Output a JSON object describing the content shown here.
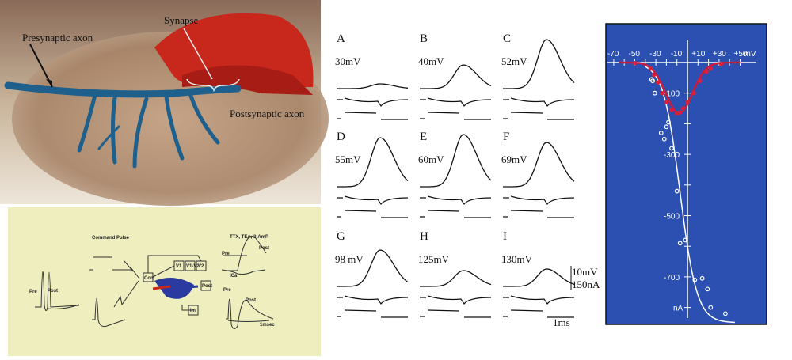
{
  "photo": {
    "labels": {
      "presynaptic": "Presynaptic axon",
      "synapse": "Synapse",
      "postsynaptic": "Postsynaptic axon"
    },
    "colors": {
      "tissue": "#b08a6a",
      "synapse": "#c8281c",
      "axon": "#1e5f8c"
    }
  },
  "schematic": {
    "background": "#eeeebe",
    "command_pulse": "Command Pulse",
    "pre": "Pre",
    "post": "Post",
    "com": "Com",
    "v1": "V1",
    "v1v2": "V1-V2",
    "v2": "V2",
    "post_box": "Post",
    "im": "Im",
    "drugs": "TTX, TEA, 3-AmP",
    "ica": "ICa",
    "scale": "1msec"
  },
  "traces": {
    "panels": [
      {
        "letter": "A",
        "voltage": "30mV"
      },
      {
        "letter": "B",
        "voltage": "40mV"
      },
      {
        "letter": "C",
        "voltage": "52mV"
      },
      {
        "letter": "D",
        "voltage": "55mV"
      },
      {
        "letter": "E",
        "voltage": "60mV"
      },
      {
        "letter": "F",
        "voltage": "69mV"
      },
      {
        "letter": "G",
        "voltage": "98 mV"
      },
      {
        "letter": "H",
        "voltage": "125mV"
      },
      {
        "letter": "I",
        "voltage": "130mV"
      }
    ],
    "scale_voltage": "10mV",
    "scale_current": "150nA",
    "scale_time": "1ms"
  },
  "chart_data": {
    "type": "scatter",
    "background": "#2b50b2",
    "x_unit": "mV",
    "y_unit": "nA",
    "xlim": [
      -70,
      50
    ],
    "ylim": [
      -850,
      0
    ],
    "x_ticks": [
      "-70",
      "-50",
      "-30",
      "-10",
      "+10",
      "+30",
      "+50"
    ],
    "y_ticks": [
      "-100",
      "-300",
      "-500",
      "-700"
    ],
    "grid": false,
    "series": [
      {
        "color": "#ffffff",
        "marker": "open-circle",
        "x": [
          -34,
          -33,
          -31,
          -25,
          -22,
          -20,
          -18,
          -15,
          -10,
          -7,
          -2,
          7,
          14,
          19,
          22,
          36
        ],
        "y": [
          -55,
          -60,
          -100,
          -230,
          -250,
          -210,
          -195,
          -280,
          -420,
          -590,
          -580,
          -710,
          -705,
          -740,
          -800,
          -820
        ]
      },
      {
        "color": "#d8203c",
        "marker": "filled-circle",
        "x": [
          -50,
          -35,
          -32,
          -28,
          -24,
          -20,
          -15,
          -10,
          -7,
          -4,
          0,
          6,
          12,
          18,
          22,
          32
        ],
        "y": [
          -2,
          -20,
          -40,
          -65,
          -100,
          -130,
          -155,
          -165,
          -163,
          -150,
          -130,
          -100,
          -60,
          -30,
          -20,
          -5
        ]
      }
    ]
  }
}
